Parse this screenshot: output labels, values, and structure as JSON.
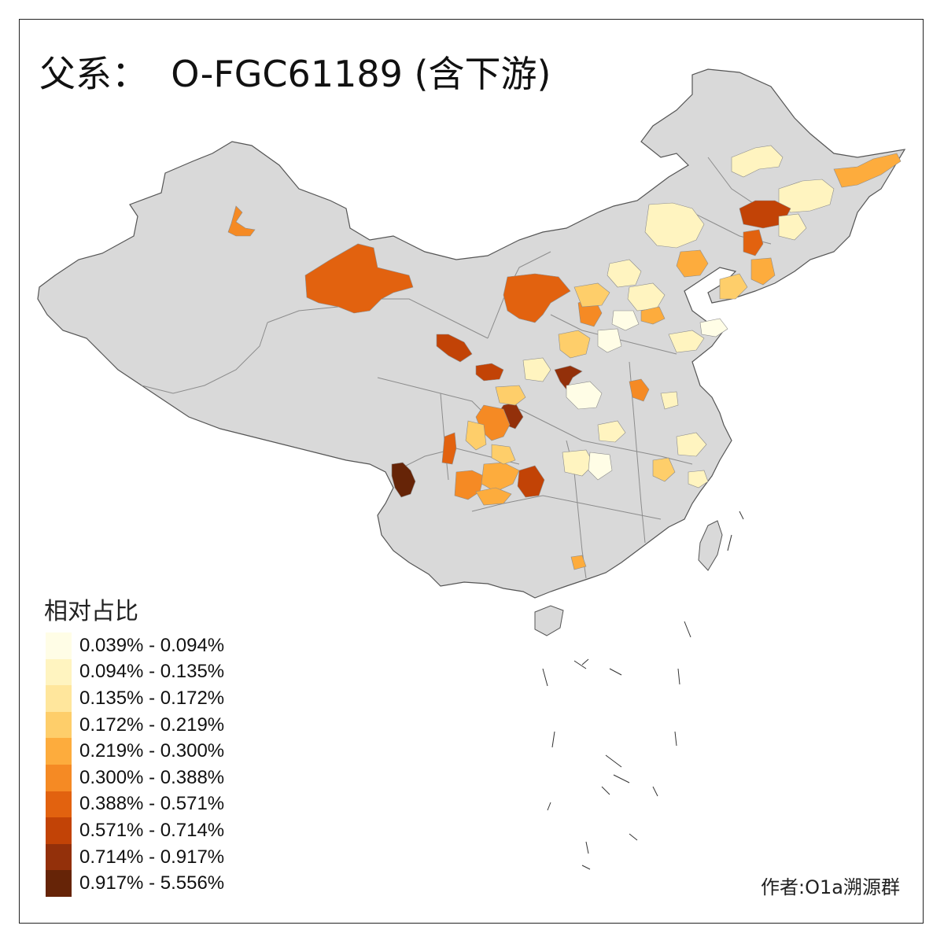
{
  "title": "父系：  O-FGC61189 (含下游)",
  "legend": {
    "title": "相对占比",
    "items": [
      {
        "label": "0.039% - 0.094%",
        "color": "#fffde6"
      },
      {
        "label": "0.094% - 0.135%",
        "color": "#fff4c0"
      },
      {
        "label": "0.135% - 0.172%",
        "color": "#ffe69c"
      },
      {
        "label": "0.172% - 0.219%",
        "color": "#fece6a"
      },
      {
        "label": "0.219% - 0.300%",
        "color": "#fdac3d"
      },
      {
        "label": "0.300% - 0.388%",
        "color": "#f58a24"
      },
      {
        "label": "0.388% - 0.571%",
        "color": "#e2620f"
      },
      {
        "label": "0.571% - 0.714%",
        "color": "#c24306"
      },
      {
        "label": "0.714% - 0.917%",
        "color": "#93300a"
      },
      {
        "label": "0.917% - 5.556%",
        "color": "#662407"
      }
    ]
  },
  "credit": "作者:O1a溯源群",
  "colors": {
    "land": "#d9d9d9",
    "border": "#8c8c8c",
    "outline": "#555555",
    "frame": "#222222"
  }
}
